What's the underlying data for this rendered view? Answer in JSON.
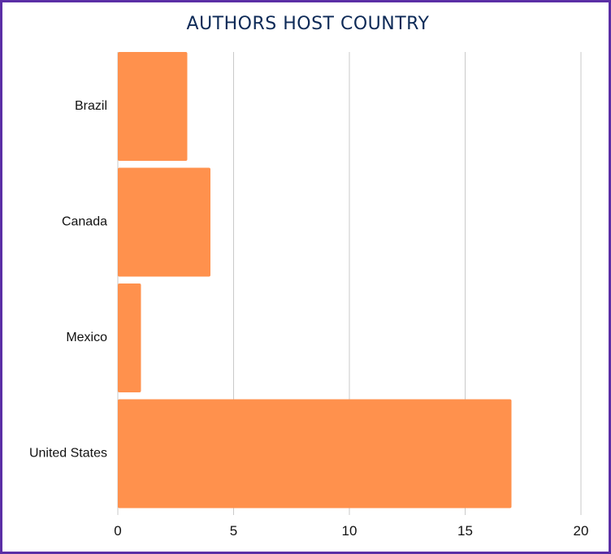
{
  "chart_data": {
    "type": "bar",
    "orientation": "horizontal",
    "title": "AUTHORS HOST COUNTRY",
    "categories": [
      "Brazil",
      "Canada",
      "Mexico",
      "United States"
    ],
    "values": [
      3,
      4,
      1,
      17
    ],
    "xlim": [
      0,
      20
    ],
    "xticks": [
      0,
      5,
      10,
      15,
      20
    ],
    "grid": "vertical",
    "bar_color": "#ff914d",
    "grid_color": "#c9c9c9",
    "title_color": "#0d2a57",
    "border_color": "#5b2fa6"
  }
}
